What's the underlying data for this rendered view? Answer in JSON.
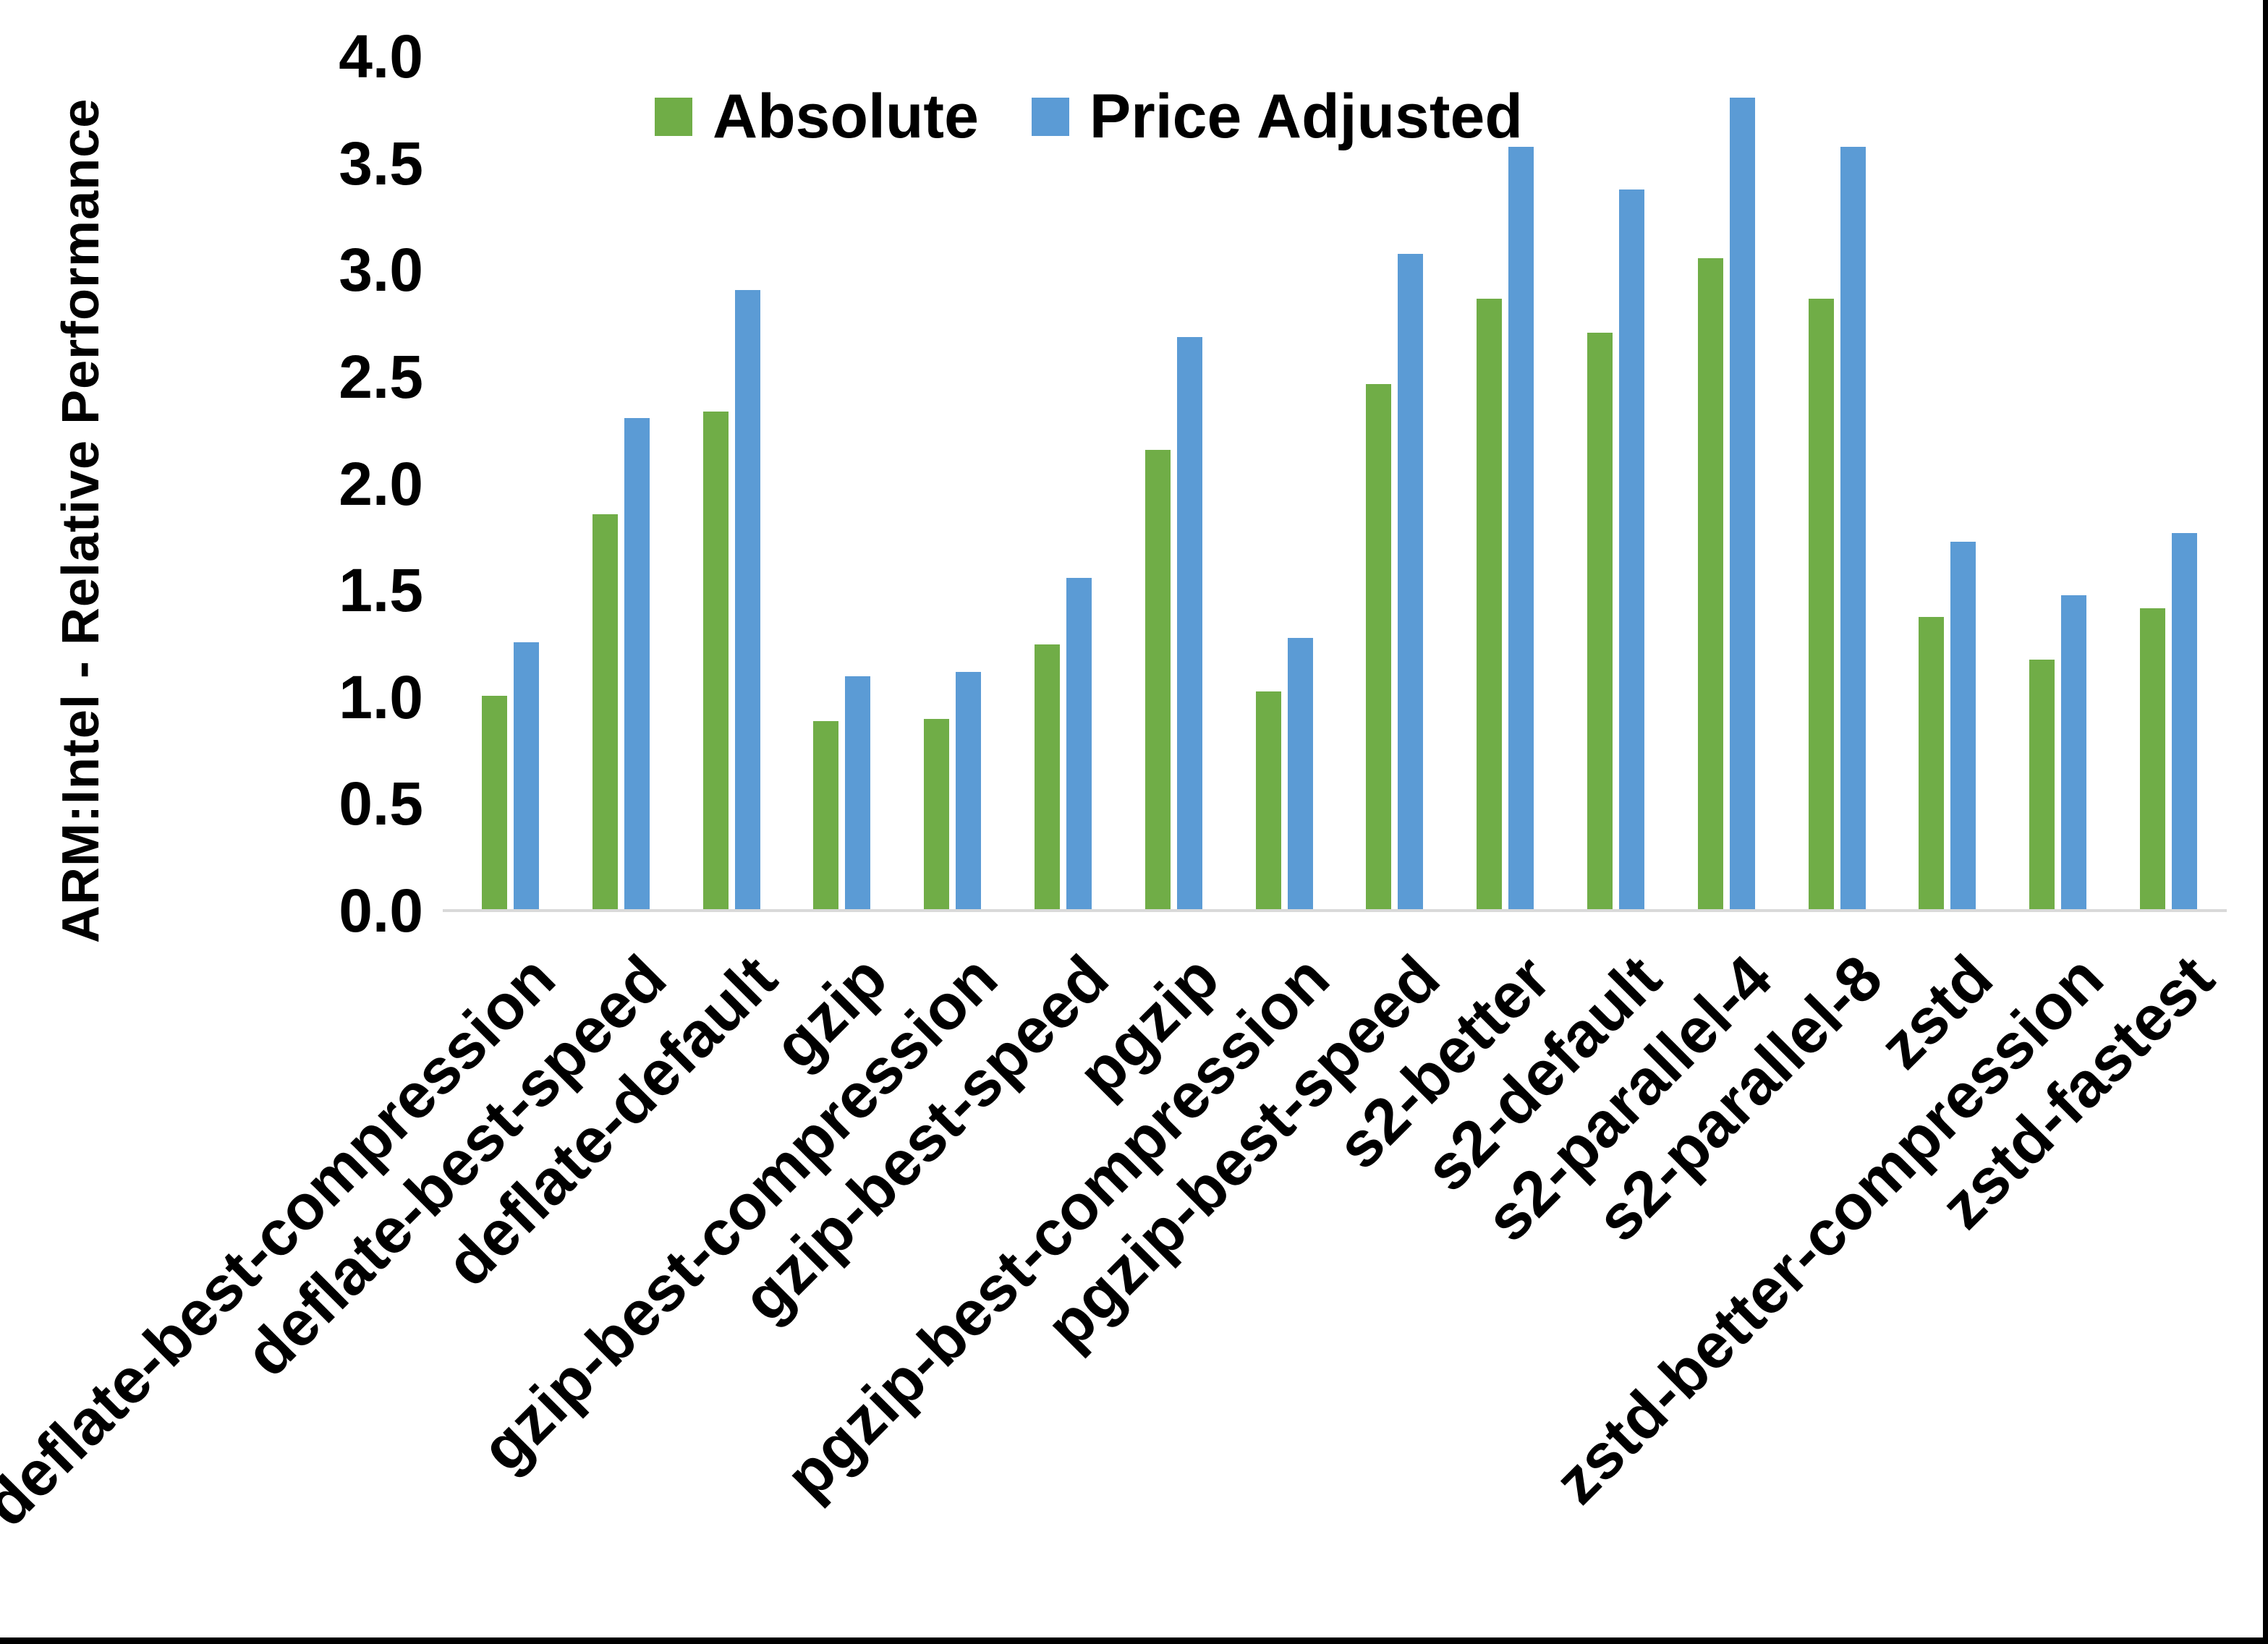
{
  "chart_data": {
    "type": "bar",
    "title": "",
    "ylabel": "ARM:Intel - Relative Performance",
    "xlabel": "",
    "ylim": [
      0.0,
      4.0
    ],
    "ytick_step": 0.5,
    "yticks": [
      "0.0",
      "0.5",
      "1.0",
      "1.5",
      "2.0",
      "2.5",
      "3.0",
      "3.5",
      "4.0"
    ],
    "grid": false,
    "legend_position": "top",
    "axis_line_color": "#d9d9d9",
    "text_color": "#000000",
    "background_color": "#ffffff",
    "categories": [
      "deflate-best-compression",
      "deflate-best-speed",
      "deflate-default",
      "gzip",
      "gzip-best-compression",
      "gzip-best-speed",
      "pgzip",
      "pgzip-best-compression",
      "pgzip-best-speed",
      "s2-better",
      "s2-default",
      "s2-parallel-4",
      "s2-parallel-8",
      "zstd",
      "zstd-better-compression",
      "zstd-fastest"
    ],
    "series": [
      {
        "name": "Absolute",
        "color": "#70AD47",
        "values": [
          1.0,
          1.85,
          2.33,
          0.88,
          0.89,
          1.24,
          2.15,
          1.02,
          2.46,
          2.86,
          2.7,
          3.05,
          2.86,
          1.37,
          1.17,
          1.41
        ]
      },
      {
        "name": "Price Adjusted",
        "color": "#5B9BD5",
        "values": [
          1.25,
          2.3,
          2.9,
          1.09,
          1.11,
          1.55,
          2.68,
          1.27,
          3.07,
          3.57,
          3.37,
          3.8,
          3.57,
          1.72,
          1.47,
          1.76
        ]
      }
    ]
  }
}
